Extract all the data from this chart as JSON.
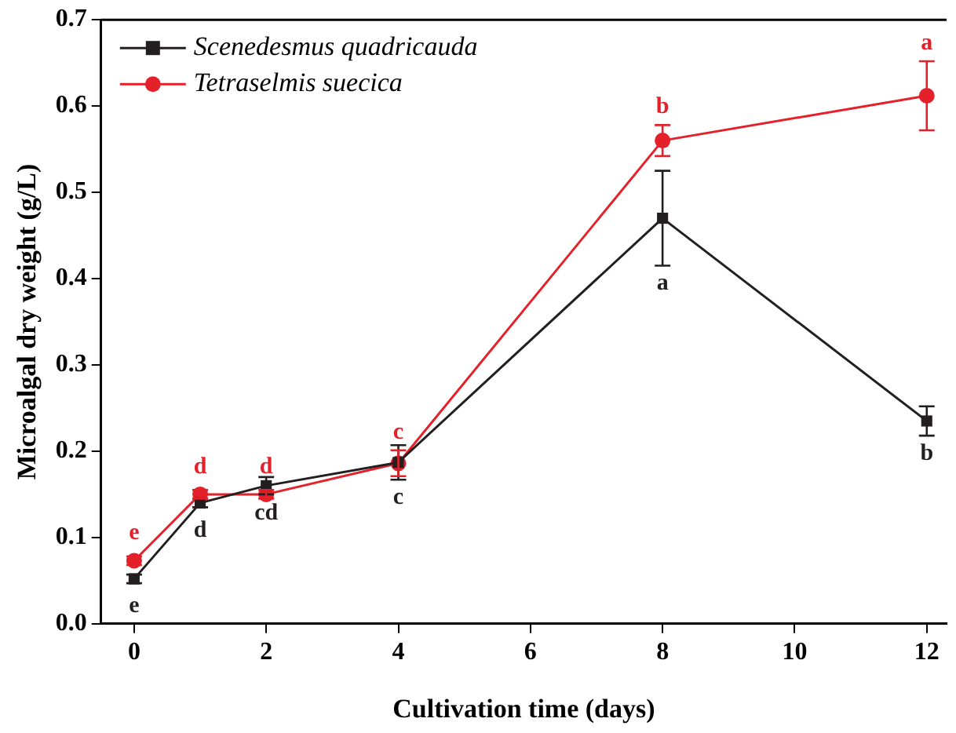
{
  "chart_data": {
    "type": "line",
    "xlabel": "Cultivation time (days)",
    "ylabel": "Microalgal dry weight (g/L)",
    "x": [
      0,
      1,
      2,
      4,
      8,
      12
    ],
    "series": [
      {
        "name": "Scenedesmus quadricauda",
        "color": "#231f20",
        "marker": "square",
        "values": [
          0.052,
          0.14,
          0.16,
          0.187,
          0.47,
          0.235
        ],
        "errors": [
          0.005,
          0.005,
          0.01,
          0.02,
          0.055,
          0.017
        ],
        "value_labels": [
          "e",
          "d",
          "cd",
          "c",
          "a",
          "b"
        ]
      },
      {
        "name": "Tetraselmis suecica",
        "color": "#e4202a",
        "marker": "circle",
        "values": [
          0.073,
          0.15,
          0.15,
          0.186,
          0.56,
          0.612
        ],
        "errors": [
          0.005,
          0.005,
          0.005,
          0.015,
          0.018,
          0.04
        ],
        "value_labels": [
          "e",
          "d",
          "d",
          "c",
          "b",
          "a"
        ]
      }
    ],
    "xlim": [
      -0.5,
      12.3
    ],
    "xticks": [
      0,
      2,
      4,
      6,
      8,
      10,
      12
    ],
    "ylim": [
      0,
      0.7
    ],
    "yticks": [
      {
        "value": 0,
        "label": "0.0"
      },
      0.1,
      0.2,
      0.3,
      0.4,
      0.5,
      0.6,
      0.7
    ],
    "grid": false,
    "legend": "top left",
    "line_style": "solid"
  }
}
